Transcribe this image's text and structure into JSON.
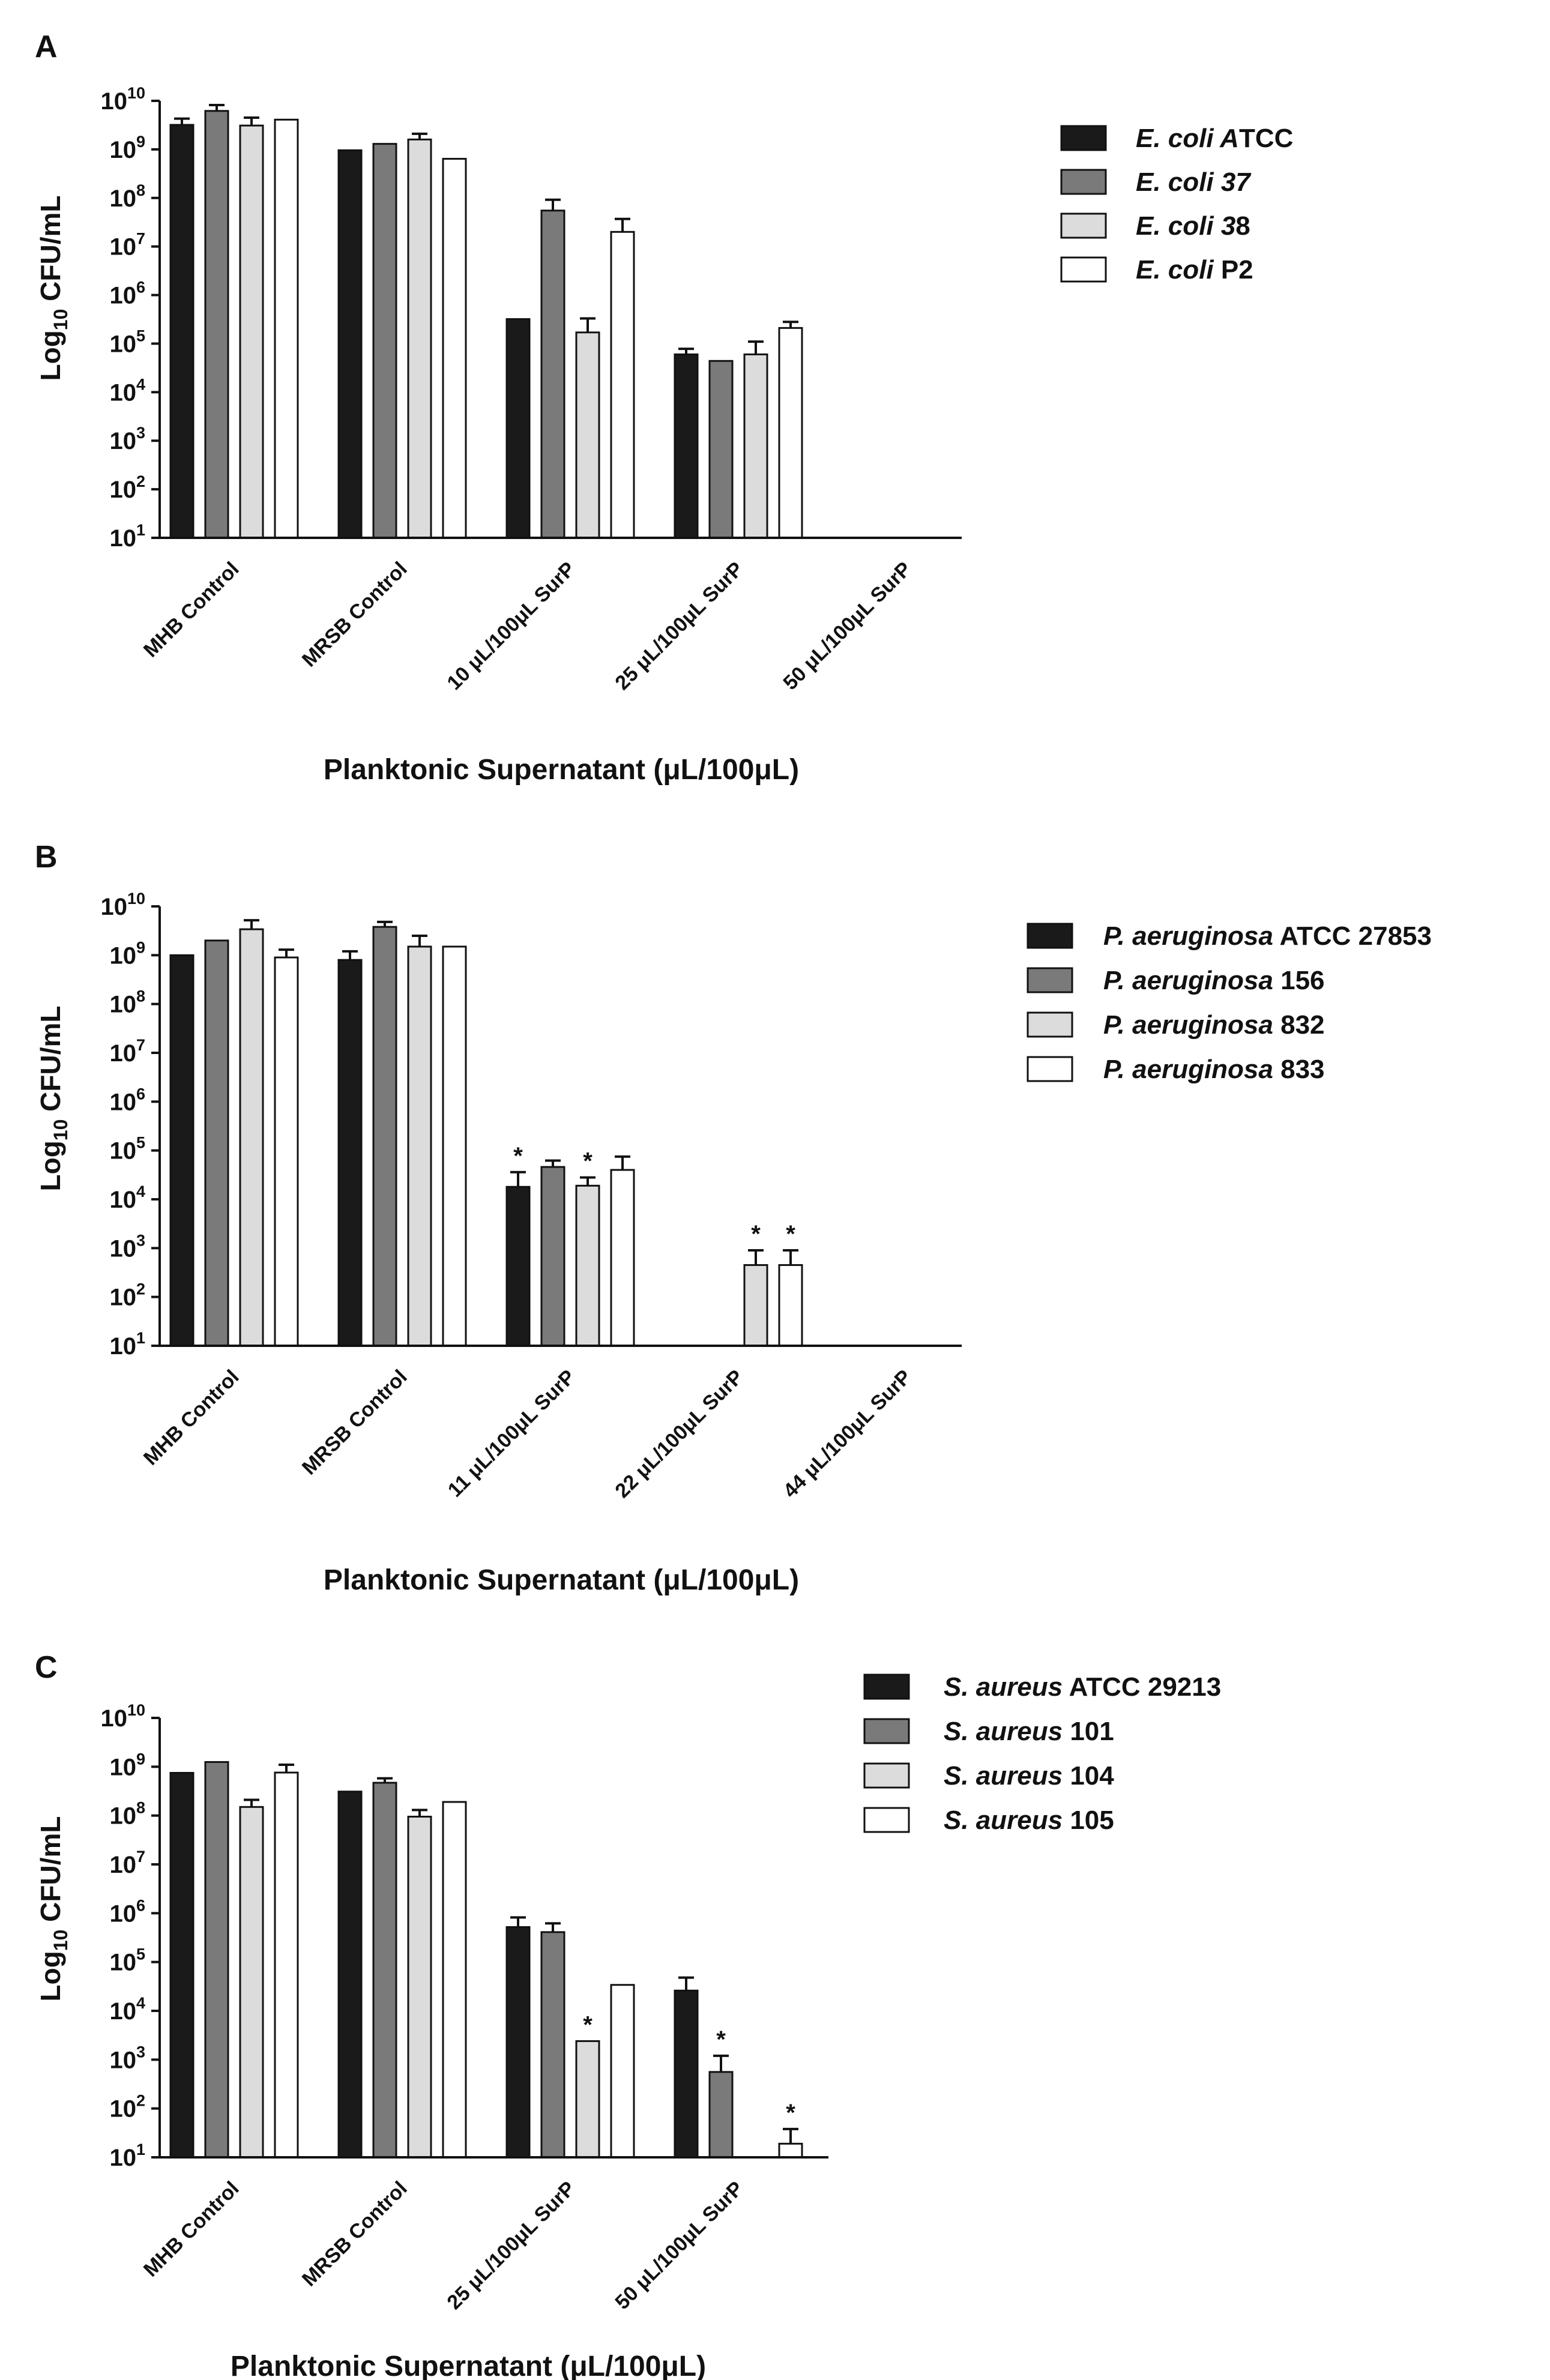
{
  "chart_data": [
    {
      "type": "bar",
      "panel": "A",
      "scale": "log10",
      "ylabel": {
        "prefix": "Log",
        "sub": "10",
        "suffix": " CFU/mL"
      },
      "xlabel": "Planktonic Supernatant (μL/100μL)",
      "ylim": [
        10,
        10000000000
      ],
      "ytick_exponents": [
        1,
        2,
        3,
        4,
        5,
        6,
        7,
        8,
        9,
        10
      ],
      "categories": [
        "MHB Control",
        "MRSB Control",
        "10 μL/100μL SurP",
        "25 μL/100μL SurP",
        "50 μL/100μL SurP"
      ],
      "series": [
        {
          "name_italic": "E. coli A",
          "name_rest": "TCC",
          "fill": "#1a1a1a",
          "values": [
            3200000000,
            960000000,
            320000,
            60000,
            null
          ],
          "errors": [
            4300000000,
            null,
            null,
            78000,
            null
          ],
          "stars": [
            false,
            false,
            false,
            false,
            false
          ]
        },
        {
          "name_italic": "E. coli 37",
          "name_rest": "",
          "fill": "#7a7a7a",
          "values": [
            6200000000,
            1300000000,
            55000000,
            44000,
            null
          ],
          "errors": [
            8200000000,
            null,
            92000000,
            null,
            null
          ],
          "stars": [
            false,
            false,
            false,
            false,
            false
          ]
        },
        {
          "name_italic": "E. coli 3",
          "name_rest": "8",
          "fill": "#dcdcdc",
          "values": [
            3100000000,
            1600000000,
            170000,
            60000,
            null
          ],
          "errors": [
            4500000000,
            2100000000,
            330000,
            110000,
            null
          ],
          "stars": [
            false,
            false,
            false,
            false,
            false
          ]
        },
        {
          "name_italic": "E. coli ",
          "name_rest": "P2",
          "fill": "#ffffff",
          "values": [
            4100000000,
            640000000,
            20000000,
            210000,
            null
          ],
          "errors": [
            null,
            null,
            37000000,
            280000,
            null
          ],
          "stars": [
            false,
            false,
            false,
            false,
            false
          ]
        }
      ]
    },
    {
      "type": "bar",
      "panel": "B",
      "scale": "log10",
      "ylabel": {
        "prefix": "Log",
        "sub": "10",
        "suffix": " CFU/mL"
      },
      "xlabel": "Planktonic Supernatant (μL/100μL)",
      "ylim": [
        10,
        10000000000
      ],
      "ytick_exponents": [
        1,
        2,
        3,
        4,
        5,
        6,
        7,
        8,
        9,
        10
      ],
      "categories": [
        "MHB Control",
        "MRSB Control",
        "11 μL/100μL SurP",
        "22 μL/100μL SurP",
        "44 μL/100μL SurP"
      ],
      "series": [
        {
          "name_italic": "P. aeruginosa",
          "name_rest": " ATCC 27853",
          "fill": "#1a1a1a",
          "values": [
            1000000000,
            800000000,
            18000,
            null,
            null
          ],
          "errors": [
            null,
            1200000000,
            36000,
            null,
            null
          ],
          "stars": [
            false,
            false,
            true,
            false,
            false
          ]
        },
        {
          "name_italic": "P. aeruginosa",
          "name_rest": " 156",
          "fill": "#7a7a7a",
          "values": [
            2000000000,
            3800000000,
            46000,
            null,
            null
          ],
          "errors": [
            null,
            4800000000,
            62000,
            null,
            null
          ],
          "stars": [
            false,
            false,
            false,
            false,
            false
          ]
        },
        {
          "name_italic": "P. aeruginosa",
          "name_rest": " 832",
          "fill": "#dcdcdc",
          "values": [
            3400000000,
            1500000000,
            19000,
            450,
            null
          ],
          "errors": [
            5200000000,
            2500000000,
            28000,
            900,
            null
          ],
          "stars": [
            false,
            false,
            true,
            true,
            false
          ]
        },
        {
          "name_italic": "P. aeruginosa",
          "name_rest": " 833",
          "fill": "#ffffff",
          "values": [
            900000000,
            1500000000,
            40000,
            450,
            null
          ],
          "errors": [
            1300000000,
            null,
            75000,
            900,
            null
          ],
          "stars": [
            false,
            false,
            false,
            true,
            false
          ]
        }
      ]
    },
    {
      "type": "bar",
      "panel": "C",
      "scale": "log10",
      "ylabel": {
        "prefix": "Log",
        "sub": "10",
        "suffix": " CFU/mL"
      },
      "xlabel": "Planktonic Supernatant (μL/100μL)",
      "ylim": [
        10,
        10000000000
      ],
      "ytick_exponents": [
        1,
        2,
        3,
        4,
        5,
        6,
        7,
        8,
        9,
        10
      ],
      "categories": [
        "MHB Control",
        "MRSB Control",
        "25 μL/100μL SurP",
        "50 μL/100μL SurP"
      ],
      "series": [
        {
          "name_italic": "S. aureus",
          "name_rest": " ATCC 29213",
          "fill": "#1a1a1a",
          "values": [
            750000000,
            310000000,
            520000,
            26000
          ],
          "errors": [
            null,
            null,
            820000,
            48000
          ],
          "stars": [
            false,
            false,
            false,
            false
          ]
        },
        {
          "name_italic": "S. aureus",
          "name_rest": " 101",
          "fill": "#7a7a7a",
          "values": [
            1250000000,
            470000000,
            410000,
            560
          ],
          "errors": [
            null,
            580000000,
            620000,
            1200
          ],
          "stars": [
            false,
            false,
            false,
            true
          ]
        },
        {
          "name_italic": "S. aureus",
          "name_rest": " 104",
          "fill": "#dcdcdc",
          "values": [
            150000000,
            95000000,
            2400,
            null
          ],
          "errors": [
            210000000,
            130000000,
            null,
            null
          ],
          "stars": [
            false,
            false,
            true,
            false
          ]
        },
        {
          "name_italic": "S. aureus",
          "name_rest": " 105",
          "fill": "#ffffff",
          "values": [
            760000000,
            190000000,
            34000,
            19
          ],
          "errors": [
            1100000000,
            null,
            null,
            38
          ],
          "stars": [
            false,
            false,
            false,
            true
          ]
        }
      ]
    }
  ]
}
